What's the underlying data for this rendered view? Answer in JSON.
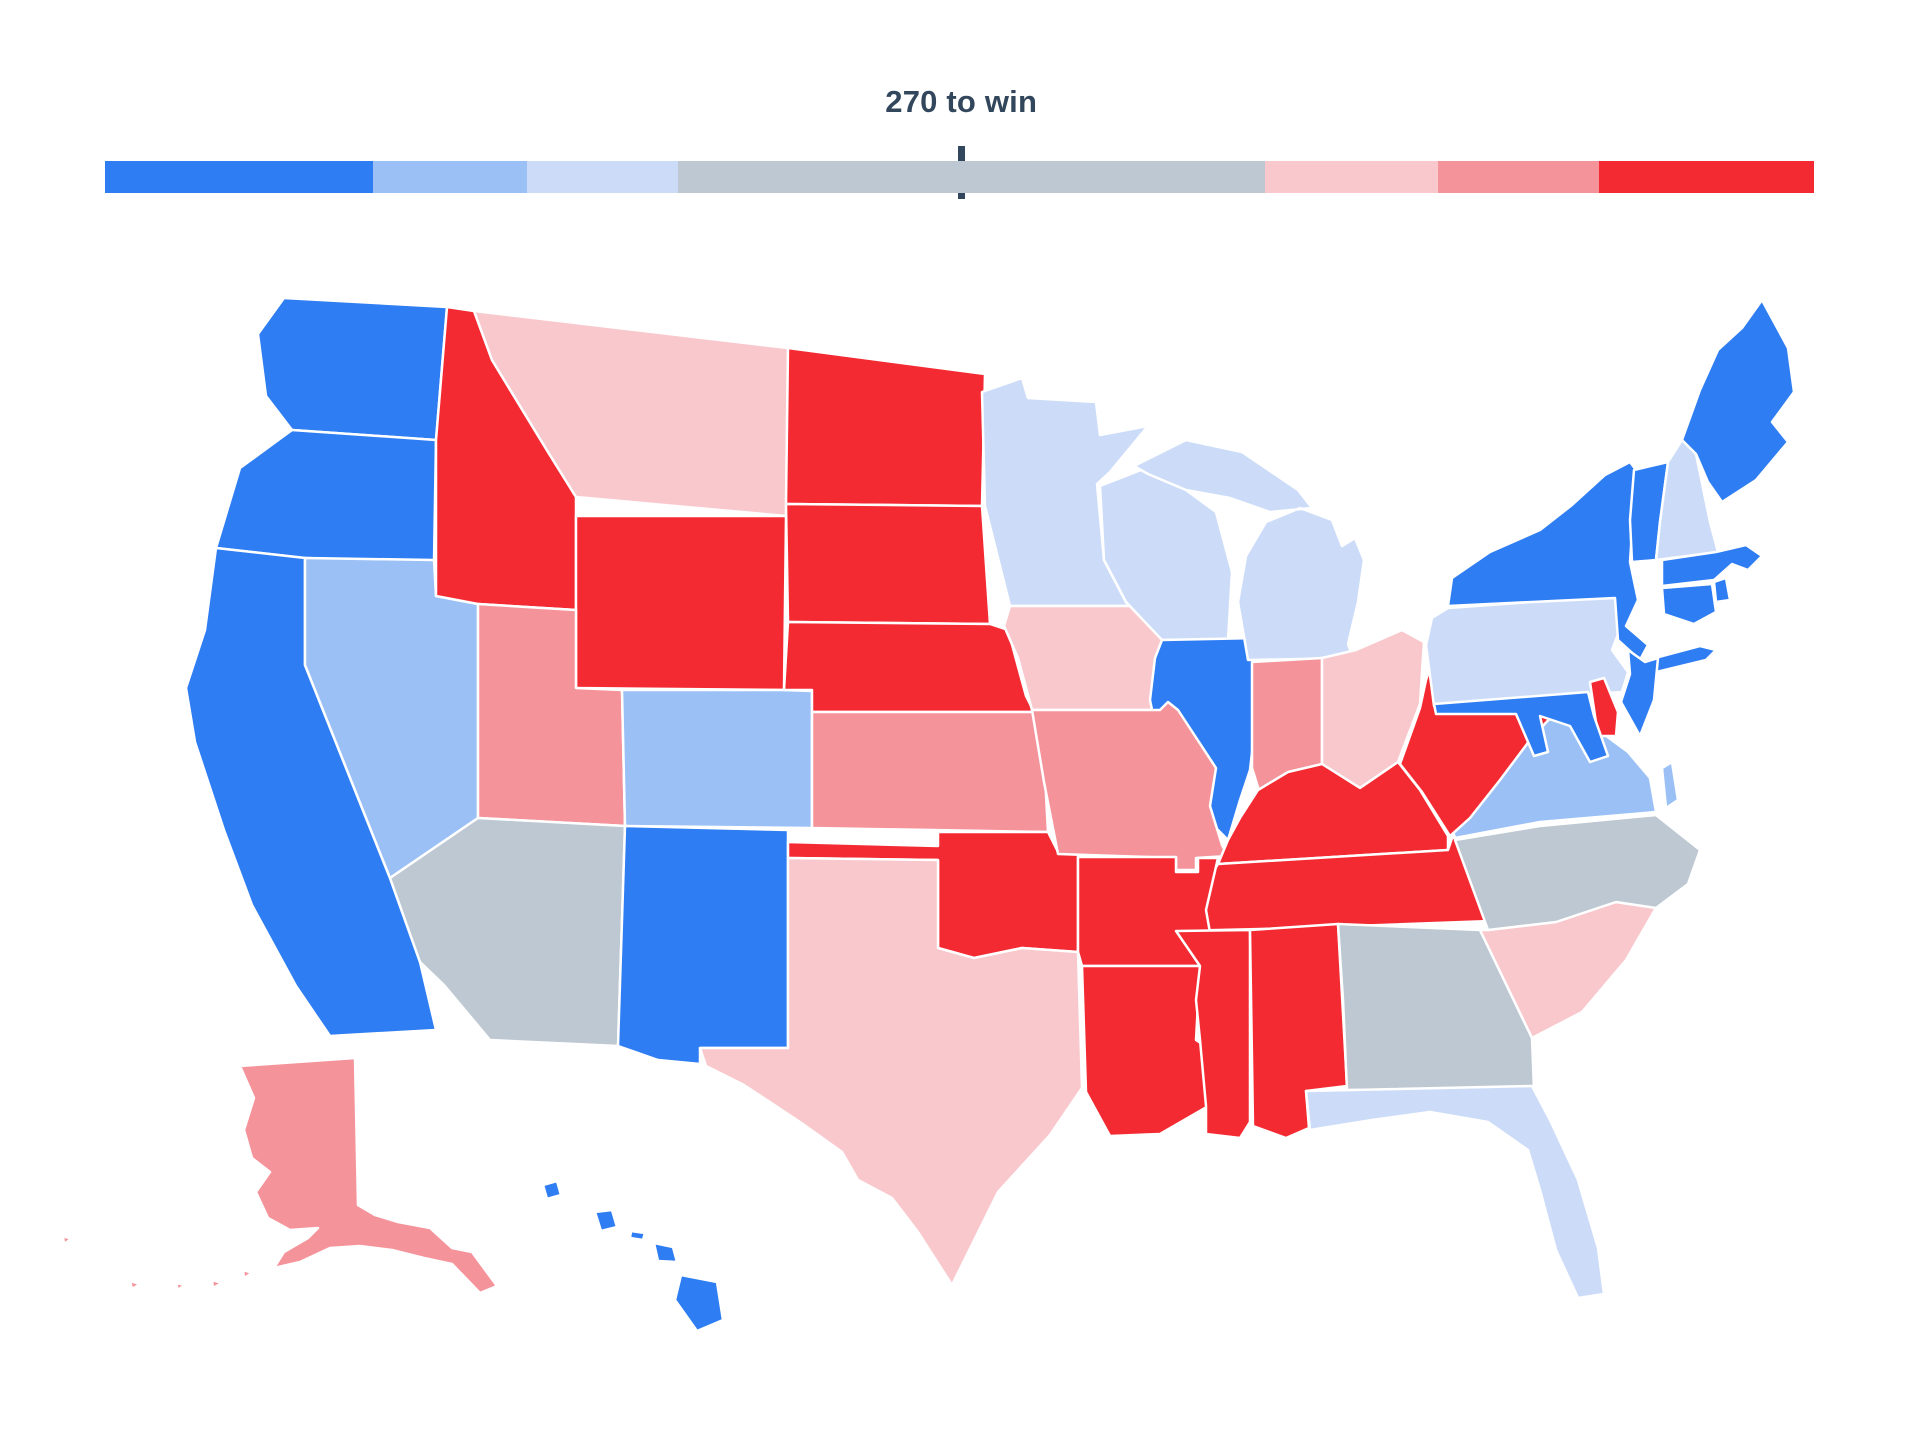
{
  "header": {
    "title": "270 to win"
  },
  "colors": {
    "background": "#FFFFFF",
    "text": "#33475C",
    "tick": "#33475C",
    "solid-dem": "#2E7DF3",
    "likely-dem": "#9BC0F6",
    "lean-dem": "#CCDCF8",
    "tossup": "#BDC8D2",
    "lean-rep": "#F9C8CD",
    "likely-rep": "#F5939B",
    "solid-rep": "#F42A33"
  },
  "legend_bar": {
    "tick_pct": 50.1,
    "segments": [
      {
        "category": "solid-dem",
        "color": "#2E7DF3",
        "width_pct": 15.7
      },
      {
        "category": "likely-dem",
        "color": "#9BC0F6",
        "width_pct": 9.0
      },
      {
        "category": "lean-dem",
        "color": "#CCDCF8",
        "width_pct": 8.8
      },
      {
        "category": "tossup",
        "color": "#BDC8D2",
        "width_pct": 34.4
      },
      {
        "category": "lean-rep",
        "color": "#F9C8CD",
        "width_pct": 10.1
      },
      {
        "category": "likely-rep",
        "color": "#F5939B",
        "width_pct": 9.4
      },
      {
        "category": "solid-rep",
        "color": "#F42A33",
        "width_pct": 12.6
      }
    ]
  },
  "map": {
    "states": [
      {
        "abbr": "WA",
        "name": "Washington",
        "category": "solid-dem"
      },
      {
        "abbr": "OR",
        "name": "Oregon",
        "category": "solid-dem"
      },
      {
        "abbr": "CA",
        "name": "California",
        "category": "solid-dem"
      },
      {
        "abbr": "NV",
        "name": "Nevada",
        "category": "likely-dem"
      },
      {
        "abbr": "ID",
        "name": "Idaho",
        "category": "solid-rep"
      },
      {
        "abbr": "MT",
        "name": "Montana",
        "category": "lean-rep"
      },
      {
        "abbr": "WY",
        "name": "Wyoming",
        "category": "solid-rep"
      },
      {
        "abbr": "UT",
        "name": "Utah",
        "category": "likely-rep"
      },
      {
        "abbr": "CO",
        "name": "Colorado",
        "category": "likely-dem"
      },
      {
        "abbr": "AZ",
        "name": "Arizona",
        "category": "tossup"
      },
      {
        "abbr": "NM",
        "name": "New Mexico",
        "category": "solid-dem"
      },
      {
        "abbr": "ND",
        "name": "North Dakota",
        "category": "solid-rep"
      },
      {
        "abbr": "SD",
        "name": "South Dakota",
        "category": "solid-rep"
      },
      {
        "abbr": "NE",
        "name": "Nebraska",
        "category": "solid-rep"
      },
      {
        "abbr": "KS",
        "name": "Kansas",
        "category": "likely-rep"
      },
      {
        "abbr": "OK",
        "name": "Oklahoma",
        "category": "solid-rep"
      },
      {
        "abbr": "TX",
        "name": "Texas",
        "category": "lean-rep"
      },
      {
        "abbr": "MN",
        "name": "Minnesota",
        "category": "lean-dem"
      },
      {
        "abbr": "IA",
        "name": "Iowa",
        "category": "lean-rep"
      },
      {
        "abbr": "MO",
        "name": "Missouri",
        "category": "likely-rep"
      },
      {
        "abbr": "AR",
        "name": "Arkansas",
        "category": "solid-rep"
      },
      {
        "abbr": "LA",
        "name": "Louisiana",
        "category": "solid-rep"
      },
      {
        "abbr": "WI",
        "name": "Wisconsin",
        "category": "lean-dem"
      },
      {
        "abbr": "IL",
        "name": "Illinois",
        "category": "solid-dem"
      },
      {
        "abbr": "MI",
        "name": "Michigan",
        "category": "lean-dem"
      },
      {
        "abbr": "IN",
        "name": "Indiana",
        "category": "likely-rep"
      },
      {
        "abbr": "OH",
        "name": "Ohio",
        "category": "lean-rep"
      },
      {
        "abbr": "KY",
        "name": "Kentucky",
        "category": "solid-rep"
      },
      {
        "abbr": "TN",
        "name": "Tennessee",
        "category": "solid-rep"
      },
      {
        "abbr": "MS",
        "name": "Mississippi",
        "category": "solid-rep"
      },
      {
        "abbr": "AL",
        "name": "Alabama",
        "category": "solid-rep"
      },
      {
        "abbr": "GA",
        "name": "Georgia",
        "category": "tossup"
      },
      {
        "abbr": "FL",
        "name": "Florida",
        "category": "lean-dem"
      },
      {
        "abbr": "SC",
        "name": "South Carolina",
        "category": "lean-rep"
      },
      {
        "abbr": "NC",
        "name": "North Carolina",
        "category": "tossup"
      },
      {
        "abbr": "VA",
        "name": "Virginia",
        "category": "likely-dem"
      },
      {
        "abbr": "WV",
        "name": "West Virginia",
        "category": "solid-rep"
      },
      {
        "abbr": "PA",
        "name": "Pennsylvania",
        "category": "lean-dem"
      },
      {
        "abbr": "NY",
        "name": "New York",
        "category": "solid-dem"
      },
      {
        "abbr": "NJ",
        "name": "New Jersey",
        "category": "solid-dem"
      },
      {
        "abbr": "DE",
        "name": "Delaware",
        "category": "solid-rep"
      },
      {
        "abbr": "MD",
        "name": "Maryland",
        "category": "solid-dem"
      },
      {
        "abbr": "VT",
        "name": "Vermont",
        "category": "solid-dem"
      },
      {
        "abbr": "NH",
        "name": "New Hampshire",
        "category": "lean-dem"
      },
      {
        "abbr": "ME",
        "name": "Maine",
        "category": "solid-dem"
      },
      {
        "abbr": "MA",
        "name": "Massachusetts",
        "category": "solid-dem"
      },
      {
        "abbr": "RI",
        "name": "Rhode Island",
        "category": "solid-dem"
      },
      {
        "abbr": "CT",
        "name": "Connecticut",
        "category": "solid-dem"
      },
      {
        "abbr": "AK",
        "name": "Alaska",
        "category": "likely-rep"
      },
      {
        "abbr": "HI",
        "name": "Hawaii",
        "category": "solid-dem"
      }
    ]
  }
}
